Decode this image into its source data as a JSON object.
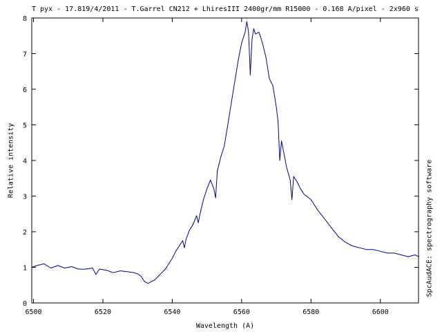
{
  "chart_data": {
    "type": "line",
    "title": "T pyx - 17.819/4/2011 - T.Garrel CN212 + LhiresIII 2400gr/mm R15000 - 0.168 A/pixel - 2x960 s",
    "xlabel": "Wavelength (A)",
    "ylabel": "Relative intensity",
    "side_label": "SpcAudACE: spectrography software",
    "xlim": [
      6499.5,
      6611
    ],
    "ylim": [
      0,
      8
    ],
    "xticks": [
      6500,
      6520,
      6540,
      6560,
      6580,
      6600
    ],
    "yticks": [
      0,
      1,
      2,
      3,
      4,
      5,
      6,
      7,
      8
    ],
    "grid": false,
    "line_color": "#000080",
    "series": [
      {
        "x": [
          6499.5,
          6501,
          6503,
          6505,
          6507,
          6509,
          6511,
          6513,
          6515,
          6517,
          6518,
          6519,
          6521,
          6523,
          6525,
          6527,
          6529,
          6530,
          6531,
          6532,
          6533,
          6534,
          6535,
          6536,
          6537,
          6538,
          6539,
          6540,
          6541,
          6542,
          6543,
          6543.5,
          6544,
          6545,
          6546,
          6547,
          6547.5,
          6548,
          6549,
          6550,
          6551,
          6552,
          6552.5,
          6553,
          6554,
          6555,
          6556,
          6557,
          6558,
          6559,
          6560,
          6561,
          6561.5,
          6562,
          6562.5,
          6563,
          6563.5,
          6564,
          6565,
          6566,
          6567,
          6568,
          6569,
          6570,
          6570.5,
          6571,
          6571.5,
          6572,
          6573,
          6574,
          6574.5,
          6575,
          6576,
          6577,
          6578,
          6580,
          6582,
          6584,
          6586,
          6588,
          6590,
          6592,
          6594,
          6596,
          6598,
          6600,
          6602,
          6604,
          6606,
          6608,
          6610,
          6611
        ],
        "y": [
          1.0,
          1.05,
          1.1,
          0.98,
          1.05,
          0.98,
          1.02,
          0.95,
          0.95,
          0.98,
          0.8,
          0.95,
          0.92,
          0.85,
          0.9,
          0.88,
          0.85,
          0.82,
          0.75,
          0.6,
          0.55,
          0.6,
          0.65,
          0.75,
          0.85,
          0.95,
          1.1,
          1.25,
          1.45,
          1.6,
          1.75,
          1.55,
          1.8,
          2.05,
          2.2,
          2.45,
          2.25,
          2.5,
          2.9,
          3.2,
          3.45,
          3.2,
          2.95,
          3.7,
          4.1,
          4.4,
          5.0,
          5.6,
          6.2,
          6.8,
          7.3,
          7.6,
          7.9,
          7.6,
          6.4,
          7.4,
          7.7,
          7.55,
          7.6,
          7.3,
          6.9,
          6.3,
          6.1,
          5.5,
          5.1,
          4.0,
          4.55,
          4.3,
          3.8,
          3.45,
          2.9,
          3.55,
          3.4,
          3.2,
          3.05,
          2.9,
          2.6,
          2.35,
          2.1,
          1.85,
          1.7,
          1.6,
          1.55,
          1.5,
          1.5,
          1.45,
          1.4,
          1.4,
          1.35,
          1.3,
          1.35,
          1.3
        ]
      }
    ]
  }
}
